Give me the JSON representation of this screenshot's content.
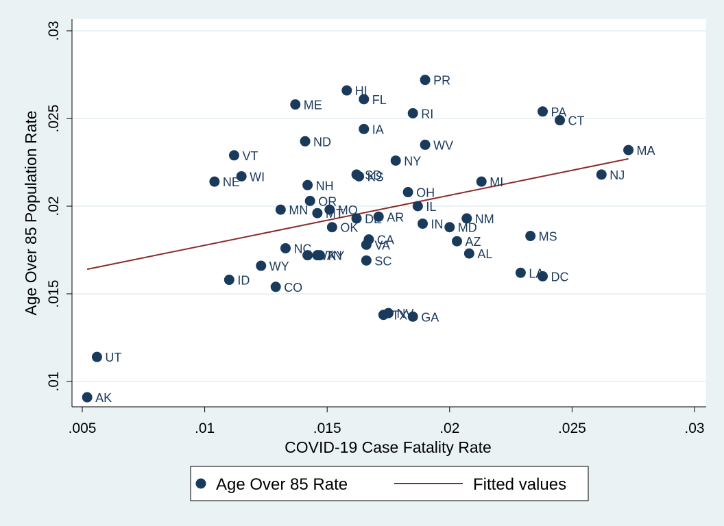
{
  "chart_data": {
    "type": "scatter",
    "xlabel": "COVID-19 Case Fatality Rate",
    "ylabel": "Age Over 85 Population Rate",
    "xlim": [
      0.005,
      0.03
    ],
    "ylim": [
      0.0085,
      0.03
    ],
    "x_ticks": [
      ".005",
      ".01",
      ".015",
      ".02",
      ".025",
      ".03"
    ],
    "x_tick_values": [
      0.005,
      0.01,
      0.015,
      0.02,
      0.025,
      0.03
    ],
    "y_ticks": [
      ".01",
      ".015",
      ".02",
      ".025",
      ".03"
    ],
    "y_tick_values": [
      0.01,
      0.015,
      0.02,
      0.025,
      0.03
    ],
    "grid": true,
    "legend_placement": "bottom",
    "series": [
      {
        "name": "Age Over 85 Rate",
        "type": "scatter",
        "color": "#1a3a5c",
        "points": [
          {
            "label": "PR",
            "x": 0.019,
            "y": 0.0272
          },
          {
            "label": "HI",
            "x": 0.0158,
            "y": 0.0266
          },
          {
            "label": "FL",
            "x": 0.0165,
            "y": 0.0261
          },
          {
            "label": "ME",
            "x": 0.0137,
            "y": 0.0258
          },
          {
            "label": "RI",
            "x": 0.0185,
            "y": 0.0253
          },
          {
            "label": "PA",
            "x": 0.0238,
            "y": 0.0254
          },
          {
            "label": "CT",
            "x": 0.0245,
            "y": 0.0249
          },
          {
            "label": "IA",
            "x": 0.0165,
            "y": 0.0244
          },
          {
            "label": "ND",
            "x": 0.0141,
            "y": 0.0237
          },
          {
            "label": "WV",
            "x": 0.019,
            "y": 0.0235
          },
          {
            "label": "MA",
            "x": 0.0273,
            "y": 0.0232
          },
          {
            "label": "VT",
            "x": 0.0112,
            "y": 0.0229
          },
          {
            "label": "NY",
            "x": 0.0178,
            "y": 0.0226
          },
          {
            "label": "NJ",
            "x": 0.0262,
            "y": 0.0218
          },
          {
            "label": "SD",
            "x": 0.0162,
            "y": 0.0218
          },
          {
            "label": "KS",
            "x": 0.0163,
            "y": 0.0217
          },
          {
            "label": "WI",
            "x": 0.0115,
            "y": 0.0217
          },
          {
            "label": "NE",
            "x": 0.0104,
            "y": 0.0214
          },
          {
            "label": "MI",
            "x": 0.0213,
            "y": 0.0214
          },
          {
            "label": "NH",
            "x": 0.0142,
            "y": 0.0212
          },
          {
            "label": "OH",
            "x": 0.0183,
            "y": 0.0208
          },
          {
            "label": "OR",
            "x": 0.0143,
            "y": 0.0203
          },
          {
            "label": "IL",
            "x": 0.0187,
            "y": 0.02
          },
          {
            "label": "MN",
            "x": 0.0131,
            "y": 0.0198
          },
          {
            "label": "MO",
            "x": 0.0151,
            "y": 0.0198
          },
          {
            "label": "MT",
            "x": 0.0146,
            "y": 0.0196
          },
          {
            "label": "AR",
            "x": 0.0171,
            "y": 0.0194
          },
          {
            "label": "DE",
            "x": 0.0162,
            "y": 0.0193
          },
          {
            "label": "NM",
            "x": 0.0207,
            "y": 0.0193
          },
          {
            "label": "IN",
            "x": 0.0189,
            "y": 0.019
          },
          {
            "label": "OK",
            "x": 0.0152,
            "y": 0.0188
          },
          {
            "label": "MD",
            "x": 0.02,
            "y": 0.0188
          },
          {
            "label": "MS",
            "x": 0.0233,
            "y": 0.0183
          },
          {
            "label": "CA",
            "x": 0.0167,
            "y": 0.0181
          },
          {
            "label": "AZ",
            "x": 0.0203,
            "y": 0.018
          },
          {
            "label": "VA",
            "x": 0.0166,
            "y": 0.0178
          },
          {
            "label": "NC",
            "x": 0.0133,
            "y": 0.0176
          },
          {
            "label": "WA",
            "x": 0.0142,
            "y": 0.0172
          },
          {
            "label": "TN",
            "x": 0.0146,
            "y": 0.0172
          },
          {
            "label": "KY",
            "x": 0.0147,
            "y": 0.0172
          },
          {
            "label": "AL",
            "x": 0.0208,
            "y": 0.0173
          },
          {
            "label": "SC",
            "x": 0.0166,
            "y": 0.0169
          },
          {
            "label": "WY",
            "x": 0.0123,
            "y": 0.0166
          },
          {
            "label": "LA",
            "x": 0.0229,
            "y": 0.0162
          },
          {
            "label": "DC",
            "x": 0.0238,
            "y": 0.016
          },
          {
            "label": "ID",
            "x": 0.011,
            "y": 0.0158
          },
          {
            "label": "CO",
            "x": 0.0129,
            "y": 0.0154
          },
          {
            "label": "NV",
            "x": 0.0175,
            "y": 0.0139
          },
          {
            "label": "TX",
            "x": 0.0173,
            "y": 0.0138
          },
          {
            "label": "GA",
            "x": 0.0185,
            "y": 0.0137
          },
          {
            "label": "UT",
            "x": 0.0056,
            "y": 0.0114
          },
          {
            "label": "AK",
            "x": 0.0052,
            "y": 0.0091
          }
        ]
      },
      {
        "name": "Fitted values",
        "type": "line",
        "color": "#8b2a2a",
        "x": [
          0.0052,
          0.0273
        ],
        "y": [
          0.0164,
          0.0227
        ]
      }
    ]
  }
}
